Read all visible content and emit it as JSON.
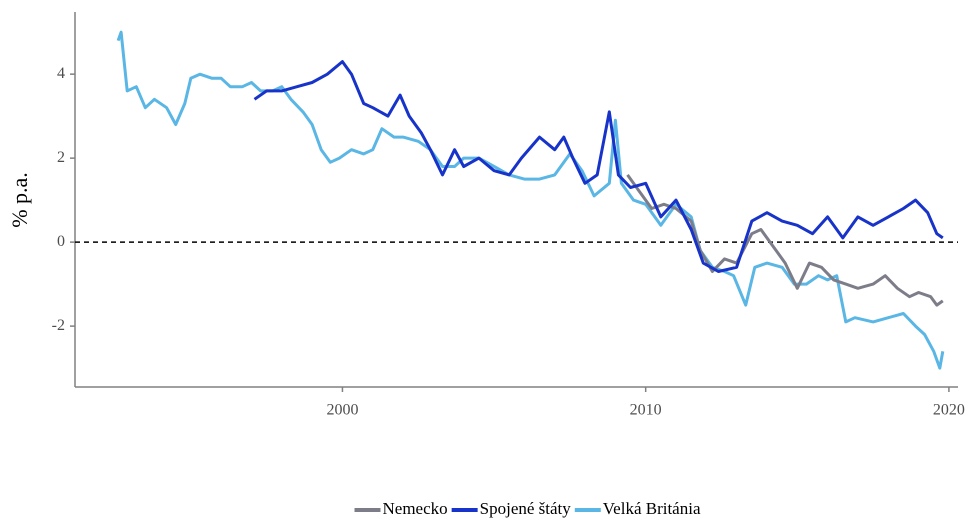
{
  "chart_data": {
    "type": "line",
    "y_label": "% p.a.",
    "xlim": [
      1991.18,
      2020.3
    ],
    "xticks": [
      2000,
      2010,
      2020
    ],
    "ylim": [
      -3.45,
      5.48
    ],
    "yticks": [
      -2,
      0,
      2,
      4
    ],
    "hline": 0,
    "legend": "bottom",
    "series": [
      {
        "name": "Nemecko",
        "color": "#7d7d8a",
        "x": [
          2009.4,
          2009.8,
          2010.2,
          2010.6,
          2011.0,
          2011.5,
          2011.8,
          2012.2,
          2012.6,
          2013.0,
          2013.5,
          2013.8,
          2014.3,
          2014.6,
          2015.0,
          2015.4,
          2015.8,
          2016.2,
          2016.6,
          2017.0,
          2017.5,
          2017.9,
          2018.3,
          2018.7,
          2019.0,
          2019.4,
          2019.6,
          2019.8
        ],
        "values": [
          1.6,
          1.2,
          0.8,
          0.9,
          0.8,
          0.5,
          -0.2,
          -0.7,
          -0.4,
          -0.5,
          0.2,
          0.3,
          -0.2,
          -0.5,
          -1.1,
          -0.5,
          -0.6,
          -0.9,
          -1.0,
          -1.1,
          -1.0,
          -0.8,
          -1.1,
          -1.3,
          -1.2,
          -1.3,
          -1.5,
          -1.4
        ]
      },
      {
        "name": "Spojené štáty",
        "color": "#1733c9",
        "x": [
          1997.1,
          1997.5,
          1998.0,
          1998.5,
          1999.0,
          1999.5,
          2000.0,
          2000.3,
          2000.7,
          2001.0,
          2001.5,
          2001.9,
          2002.2,
          2002.6,
          2002.9,
          2003.3,
          2003.7,
          2004.0,
          2004.5,
          2005.0,
          2005.5,
          2005.9,
          2006.5,
          2007.0,
          2007.3,
          2007.6,
          2008.0,
          2008.4,
          2008.8,
          2009.1,
          2009.5,
          2010.0,
          2010.5,
          2011.0,
          2011.5,
          2011.9,
          2012.4,
          2013.0,
          2013.5,
          2014.0,
          2014.5,
          2015.0,
          2015.5,
          2016.0,
          2016.5,
          2017.0,
          2017.5,
          2018.0,
          2018.5,
          2018.9,
          2019.3,
          2019.6,
          2019.8
        ],
        "values": [
          3.4,
          3.6,
          3.6,
          3.7,
          3.8,
          4.0,
          4.3,
          4.0,
          3.3,
          3.2,
          3.0,
          3.5,
          3.0,
          2.6,
          2.2,
          1.6,
          2.2,
          1.8,
          2.0,
          1.7,
          1.6,
          2.0,
          2.5,
          2.2,
          2.5,
          2.0,
          1.4,
          1.6,
          3.1,
          1.6,
          1.3,
          1.4,
          0.6,
          1.0,
          0.3,
          -0.5,
          -0.7,
          -0.6,
          0.5,
          0.7,
          0.5,
          0.4,
          0.2,
          0.6,
          0.1,
          0.6,
          0.4,
          0.6,
          0.8,
          1.0,
          0.7,
          0.2,
          0.1
        ]
      },
      {
        "name": "Velká Británia",
        "color": "#5ab6e4",
        "x": [
          1992.6,
          1992.7,
          1992.9,
          1993.2,
          1993.5,
          1993.8,
          1994.2,
          1994.5,
          1994.8,
          1995.0,
          1995.3,
          1995.7,
          1996.0,
          1996.3,
          1996.7,
          1997.0,
          1997.3,
          1997.7,
          1998.0,
          1998.3,
          1998.7,
          1999.0,
          1999.3,
          1999.6,
          1999.9,
          2000.3,
          2000.7,
          2001.0,
          2001.3,
          2001.7,
          2002.0,
          2002.5,
          2002.9,
          2003.3,
          2003.7,
          2004.0,
          2004.5,
          2005.0,
          2005.5,
          2006.0,
          2006.5,
          2007.0,
          2007.5,
          2007.9,
          2008.3,
          2008.8,
          2009.0,
          2009.2,
          2009.6,
          2010.0,
          2010.5,
          2011.0,
          2011.5,
          2011.8,
          2012.2,
          2012.6,
          2012.9,
          2013.3,
          2013.6,
          2014.0,
          2014.5,
          2014.9,
          2015.3,
          2015.7,
          2016.0,
          2016.3,
          2016.6,
          2016.9,
          2017.5,
          2018.0,
          2018.5,
          2018.9,
          2019.2,
          2019.5,
          2019.7,
          2019.8
        ],
        "values": [
          4.8,
          5.0,
          3.6,
          3.7,
          3.2,
          3.4,
          3.2,
          2.8,
          3.3,
          3.9,
          4.0,
          3.9,
          3.9,
          3.7,
          3.7,
          3.8,
          3.6,
          3.6,
          3.7,
          3.4,
          3.1,
          2.8,
          2.2,
          1.9,
          2.0,
          2.2,
          2.1,
          2.2,
          2.7,
          2.5,
          2.5,
          2.4,
          2.2,
          1.8,
          1.8,
          2.0,
          2.0,
          1.8,
          1.6,
          1.5,
          1.5,
          1.6,
          2.1,
          1.7,
          1.1,
          1.4,
          2.9,
          1.4,
          1.0,
          0.9,
          0.4,
          0.9,
          0.6,
          -0.2,
          -0.6,
          -0.7,
          -0.8,
          -1.5,
          -0.6,
          -0.5,
          -0.6,
          -1.0,
          -1.0,
          -0.8,
          -0.9,
          -0.8,
          -1.9,
          -1.8,
          -1.9,
          -1.8,
          -1.7,
          -2.0,
          -2.2,
          -2.6,
          -3.0,
          -2.6
        ]
      }
    ]
  }
}
